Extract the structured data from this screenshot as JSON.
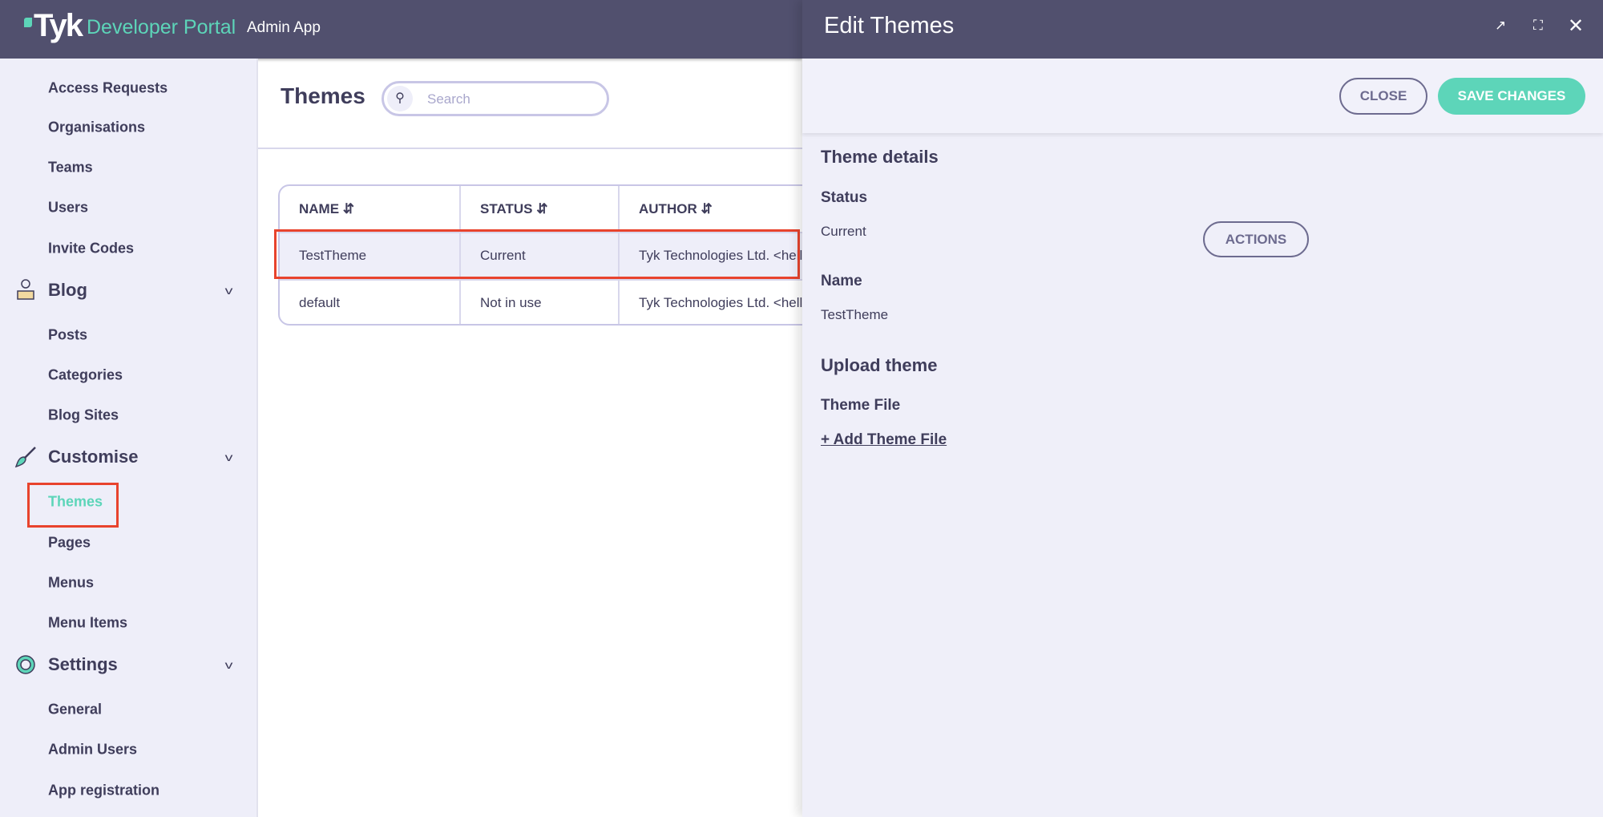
{
  "header": {
    "logo_tyk": "Tyk",
    "logo_product": "Developer Portal",
    "app_name": "Admin App"
  },
  "sidebar": {
    "items_top": [
      "Access Requests",
      "Organisations",
      "Teams",
      "Users",
      "Invite Codes"
    ],
    "blog": {
      "label": "Blog",
      "items": [
        "Posts",
        "Categories",
        "Blog Sites"
      ]
    },
    "customise": {
      "label": "Customise",
      "items": [
        "Themes",
        "Pages",
        "Menus",
        "Menu Items"
      ],
      "active": "Themes"
    },
    "settings": {
      "label": "Settings",
      "items": [
        "General",
        "Admin Users",
        "App registration"
      ]
    }
  },
  "main": {
    "title": "Themes",
    "search_placeholder": "Search",
    "table": {
      "columns": [
        "NAME",
        "STATUS",
        "AUTHOR"
      ],
      "rows": [
        [
          "TestTheme",
          "Current",
          "Tyk Technologies Ltd. <hello"
        ],
        [
          "default",
          "Not in use",
          "Tyk Technologies Ltd. <hello"
        ]
      ]
    }
  },
  "panel": {
    "title": "Edit Themes",
    "close_label": "CLOSE",
    "save_label": "SAVE CHANGES",
    "section_details": "Theme details",
    "status_label": "Status",
    "status_value": "Current",
    "actions_label": "ACTIONS",
    "name_label": "Name",
    "name_value": "TestTheme",
    "section_upload": "Upload theme",
    "file_label": "Theme File",
    "add_file_label": "+ Add Theme File"
  },
  "colors": {
    "header": "#51506e",
    "accent": "#5dd5b9",
    "sidebar_bg": "#eeeef9",
    "highlight": "#e8432d"
  }
}
